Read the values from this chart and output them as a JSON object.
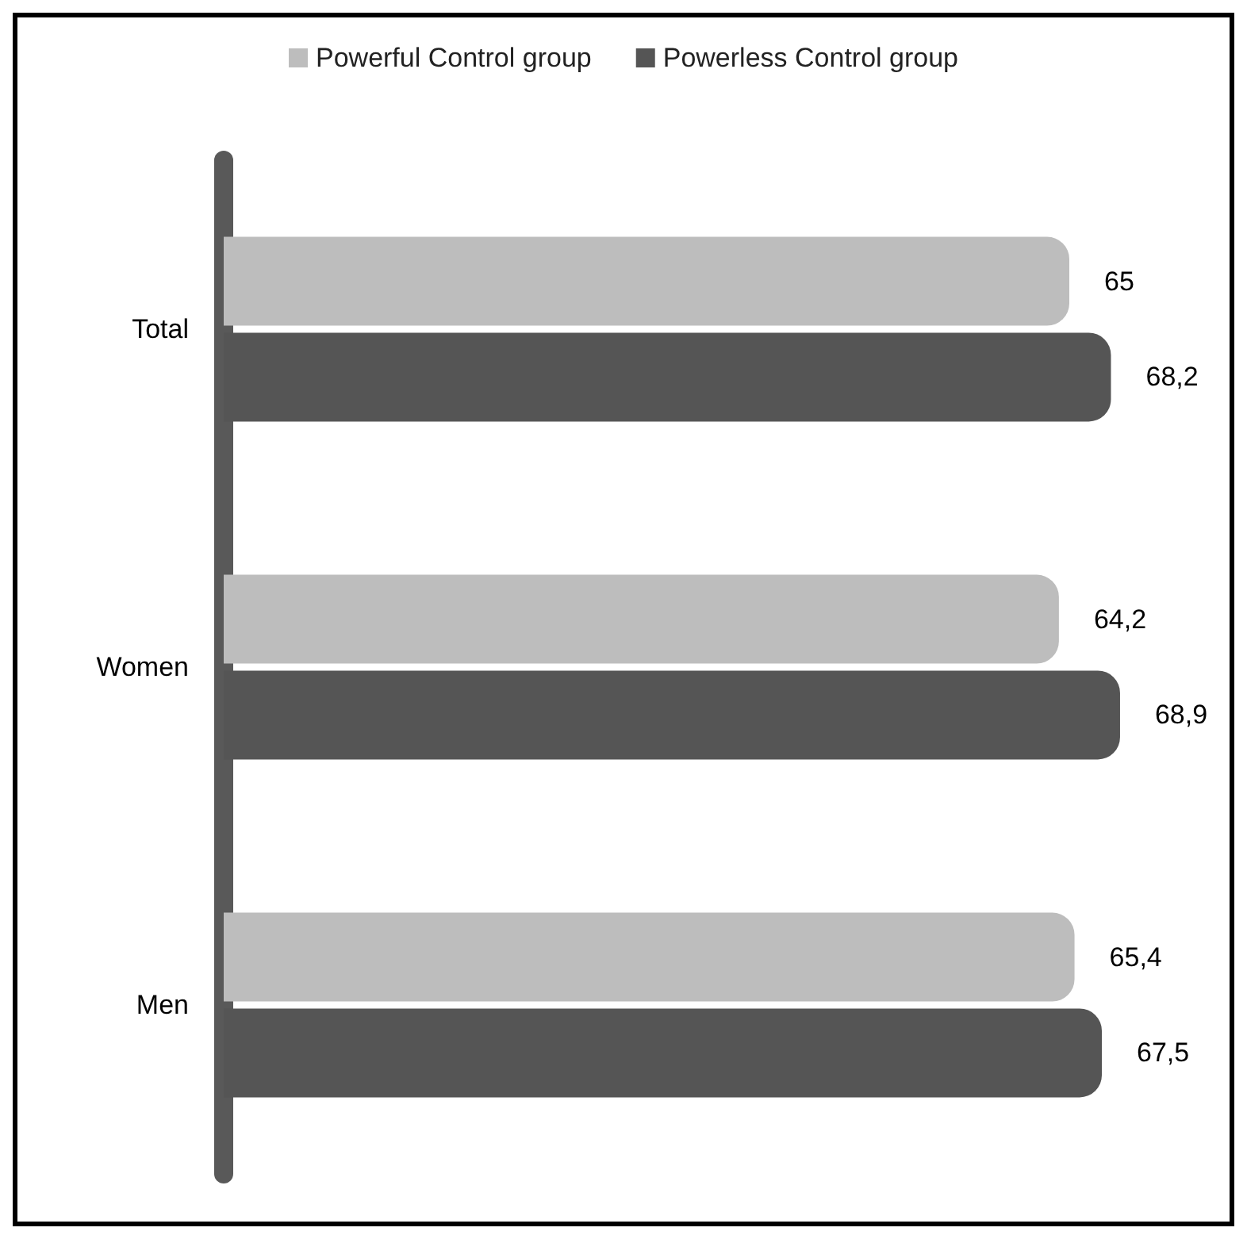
{
  "chart_data": {
    "type": "bar",
    "orientation": "horizontal",
    "categories": [
      "Total",
      "Women",
      "Men"
    ],
    "series": [
      {
        "name": "Powerful Control group",
        "color": "#bdbdbd",
        "values": [
          65,
          64.2,
          65.4
        ],
        "value_labels": [
          "65",
          "64,2",
          "65,4"
        ]
      },
      {
        "name": "Powerless Control group",
        "color": "#555555",
        "values": [
          68.2,
          68.9,
          67.5
        ],
        "value_labels": [
          "68,2",
          "68,9",
          "67,5"
        ]
      }
    ],
    "tick_labels": "y",
    "legend": "top"
  }
}
